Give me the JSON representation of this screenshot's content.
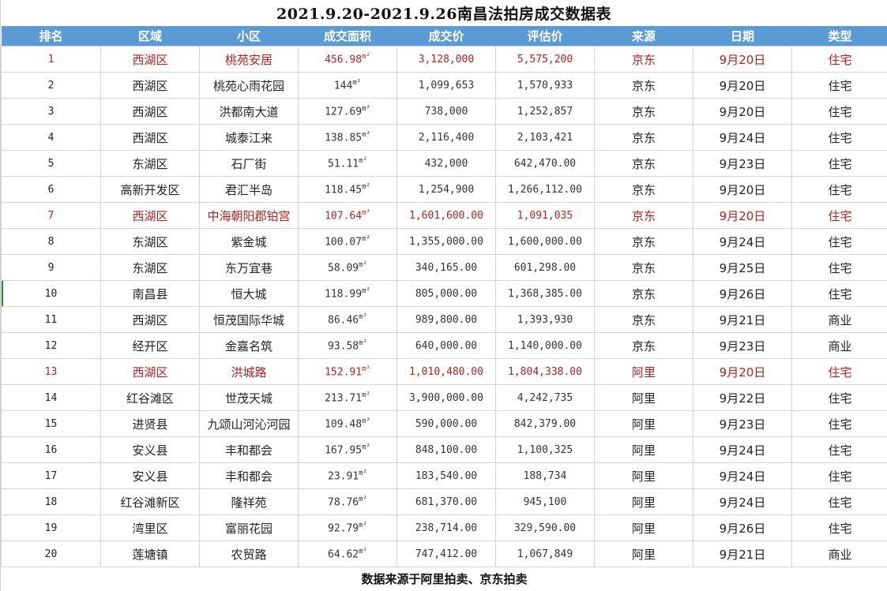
{
  "title": "2021.9.20-2021.9.26南昌法拍房成交数据表",
  "colors": {
    "header_bg": "#5b9bd5",
    "header_text": "#ffffff",
    "highlight_text": "#b22222",
    "grid": "#d4d4d4"
  },
  "columns": [
    "排名",
    "区域",
    "小区",
    "成交面积",
    "成交价",
    "评估价",
    "来源",
    "日期",
    "类型"
  ],
  "area_unit": "m²",
  "rows": [
    {
      "rank": "1",
      "district": "西湖区",
      "community": "桃苑安居",
      "area": "456.98",
      "deal_price": "3,128,000",
      "appraisal": "5,575,200",
      "source": "京东",
      "date": "9月20日",
      "type": "住宅",
      "highlight": true
    },
    {
      "rank": "2",
      "district": "西湖区",
      "community": "桃苑心雨花园",
      "area": "144",
      "deal_price": "1,099,653",
      "appraisal": "1,570,933",
      "source": "京东",
      "date": "9月20日",
      "type": "住宅",
      "highlight": false
    },
    {
      "rank": "3",
      "district": "西湖区",
      "community": "洪都南大道",
      "area": "127.69",
      "deal_price": "738,000",
      "appraisal": "1,252,857",
      "source": "京东",
      "date": "9月20日",
      "type": "住宅",
      "highlight": false
    },
    {
      "rank": "4",
      "district": "西湖区",
      "community": "城泰江来",
      "area": "138.85",
      "deal_price": "2,116,400",
      "appraisal": "2,103,421",
      "source": "京东",
      "date": "9月24日",
      "type": "住宅",
      "highlight": false
    },
    {
      "rank": "5",
      "district": "东湖区",
      "community": "石厂街",
      "area": "51.11",
      "deal_price": "432,000",
      "appraisal": "642,470.00",
      "source": "京东",
      "date": "9月23日",
      "type": "住宅",
      "highlight": false
    },
    {
      "rank": "6",
      "district": "高新开发区",
      "community": "君汇半岛",
      "area": "118.45",
      "deal_price": "1,254,900",
      "appraisal": "1,266,112.00",
      "source": "京东",
      "date": "9月20日",
      "type": "住宅",
      "highlight": false
    },
    {
      "rank": "7",
      "district": "西湖区",
      "community": "中海朝阳郡铂宫",
      "area": "107.64",
      "deal_price": "1,601,600.00",
      "appraisal": "1,091,035",
      "source": "京东",
      "date": "9月20日",
      "type": "住宅",
      "highlight": true
    },
    {
      "rank": "8",
      "district": "东湖区",
      "community": "紫金城",
      "area": "100.07",
      "deal_price": "1,355,000.00",
      "appraisal": "1,600,000.00",
      "source": "京东",
      "date": "9月24日",
      "type": "住宅",
      "highlight": false
    },
    {
      "rank": "9",
      "district": "东湖区",
      "community": "东万宜巷",
      "area": "58.09",
      "deal_price": "340,165.00",
      "appraisal": "601,298.00",
      "source": "京东",
      "date": "9月25日",
      "type": "住宅",
      "highlight": false
    },
    {
      "rank": "10",
      "district": "南昌县",
      "community": "恒大城",
      "area": "118.99",
      "deal_price": "805,000.00",
      "appraisal": "1,368,385.00",
      "source": "京东",
      "date": "9月26日",
      "type": "住宅",
      "highlight": false
    },
    {
      "rank": "11",
      "district": "西湖区",
      "community": "恒茂国际华城",
      "area": "86.46",
      "deal_price": "989,800.00",
      "appraisal": "1,393,930",
      "source": "京东",
      "date": "9月21日",
      "type": "商业",
      "highlight": false
    },
    {
      "rank": "12",
      "district": "经开区",
      "community": "金嘉名筑",
      "area": "93.58",
      "deal_price": "640,000.00",
      "appraisal": "1,140,000.00",
      "source": "京东",
      "date": "9月23日",
      "type": "商业",
      "highlight": false
    },
    {
      "rank": "13",
      "district": "西湖区",
      "community": "洪城路",
      "area": "152.91",
      "deal_price": "1,010,480.00",
      "appraisal": "1,804,338.00",
      "source": "阿里",
      "date": "9月20日",
      "type": "住宅",
      "highlight": true
    },
    {
      "rank": "14",
      "district": "红谷滩区",
      "community": "世茂天城",
      "area": "213.71",
      "deal_price": "3,900,000.00",
      "appraisal": "4,242,735",
      "source": "阿里",
      "date": "9月22日",
      "type": "住宅",
      "highlight": false
    },
    {
      "rank": "15",
      "district": "进贤县",
      "community": "九颂山河沁河园",
      "area": "109.48",
      "deal_price": "590,000.00",
      "appraisal": "842,379.00",
      "source": "阿里",
      "date": "9月23日",
      "type": "住宅",
      "highlight": false
    },
    {
      "rank": "16",
      "district": "安义县",
      "community": "丰和都会",
      "area": "167.95",
      "deal_price": "848,100.00",
      "appraisal": "1,100,325",
      "source": "阿里",
      "date": "9月24日",
      "type": "住宅",
      "highlight": false
    },
    {
      "rank": "17",
      "district": "安义县",
      "community": "丰和都会",
      "area": "23.91",
      "deal_price": "183,540.00",
      "appraisal": "188,734",
      "source": "阿里",
      "date": "9月24日",
      "type": "住宅",
      "highlight": false
    },
    {
      "rank": "18",
      "district": "红谷滩新区",
      "community": "隆祥苑",
      "area": "78.76",
      "deal_price": "681,370.00",
      "appraisal": "945,100",
      "source": "阿里",
      "date": "9月24日",
      "type": "住宅",
      "highlight": false
    },
    {
      "rank": "19",
      "district": "湾里区",
      "community": "富丽花园",
      "area": "92.79",
      "deal_price": "238,714.00",
      "appraisal": "329,590.00",
      "source": "阿里",
      "date": "9月26日",
      "type": "住宅",
      "highlight": false
    },
    {
      "rank": "20",
      "district": "莲塘镇",
      "community": "农贸路",
      "area": "64.62",
      "deal_price": "747,412.00",
      "appraisal": "1,067,849",
      "source": "阿里",
      "date": "9月21日",
      "type": "商业",
      "highlight": false
    }
  ],
  "footer": "数据来源于阿里拍卖、京东拍卖"
}
